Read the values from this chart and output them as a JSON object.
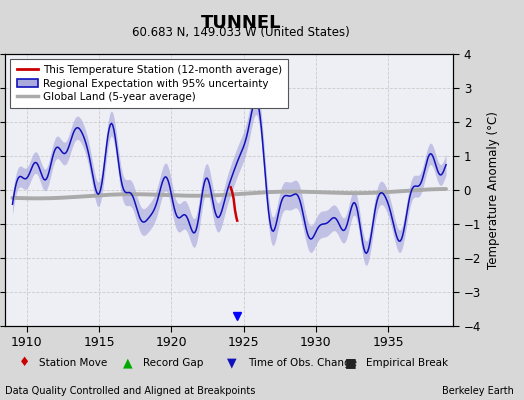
{
  "title": "TUNNEL",
  "subtitle": "60.683 N, 149.033 W (United States)",
  "ylabel": "Temperature Anomaly (°C)",
  "xlabel_bottom_left": "Data Quality Controlled and Aligned at Breakpoints",
  "xlabel_bottom_right": "Berkeley Earth",
  "xlim": [
    1908.5,
    1939.5
  ],
  "ylim": [
    -4,
    4
  ],
  "yticks": [
    -4,
    -3,
    -2,
    -1,
    0,
    1,
    2,
    3,
    4
  ],
  "xticks": [
    1910,
    1915,
    1920,
    1925,
    1930,
    1935
  ],
  "background_color": "#d8d8d8",
  "plot_background_color": "#eeeef5",
  "regional_color": "#1111bb",
  "regional_fill_color": "#aaaadd",
  "global_land_color": "#aaaaaa",
  "station_color": "#cc0000",
  "legend_bg": "#ffffff",
  "bottom_legend_bg": "#ffffff"
}
